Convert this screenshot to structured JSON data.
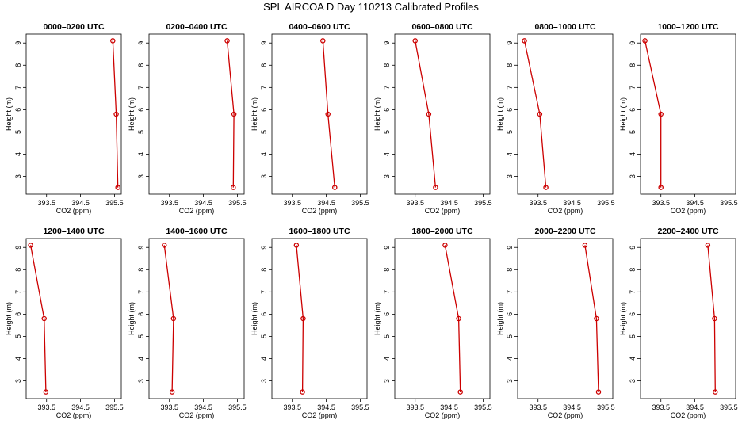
{
  "figure": {
    "title": "SPL AIRCOA D  Day 110213  Calibrated Profiles"
  },
  "colors": {
    "profile": "#cc0000",
    "frame": "#000000"
  },
  "chart_data": [
    {
      "type": "line",
      "title": "0000–0200 UTC",
      "xlabel": "CO2 (ppm)",
      "ylabel": "Height (m)",
      "xlim": [
        392.9,
        395.7
      ],
      "ylim": [
        2.2,
        9.4
      ],
      "xticks": [
        "393.5",
        "394.5",
        "395.5"
      ],
      "yticks": [
        "3",
        "4",
        "5",
        "6",
        "7",
        "8",
        "9"
      ],
      "x": [
        395.6,
        395.55,
        395.45
      ],
      "y": [
        2.5,
        5.8,
        9.1
      ]
    },
    {
      "type": "line",
      "title": "0200–0400 UTC",
      "xlabel": "CO2 (ppm)",
      "ylabel": "Height (m)",
      "xlim": [
        392.9,
        395.7
      ],
      "ylim": [
        2.2,
        9.4
      ],
      "xticks": [
        "393.5",
        "394.5",
        "395.5"
      ],
      "yticks": [
        "3",
        "4",
        "5",
        "6",
        "7",
        "8",
        "9"
      ],
      "x": [
        395.38,
        395.4,
        395.2
      ],
      "y": [
        2.5,
        5.8,
        9.1
      ]
    },
    {
      "type": "line",
      "title": "0400–0600 UTC",
      "xlabel": "CO2 (ppm)",
      "ylabel": "Height (m)",
      "xlim": [
        392.9,
        395.7
      ],
      "ylim": [
        2.2,
        9.4
      ],
      "xticks": [
        "393.5",
        "394.5",
        "395.5"
      ],
      "yticks": [
        "3",
        "4",
        "5",
        "6",
        "7",
        "8",
        "9"
      ],
      "x": [
        394.75,
        394.55,
        394.4
      ],
      "y": [
        2.5,
        5.8,
        9.1
      ]
    },
    {
      "type": "line",
      "title": "0600–0800 UTC",
      "xlabel": "CO2 (ppm)",
      "ylabel": "Height (m)",
      "xlim": [
        392.9,
        395.7
      ],
      "ylim": [
        2.2,
        9.4
      ],
      "xticks": [
        "393.5",
        "394.5",
        "395.5"
      ],
      "yticks": [
        "3",
        "4",
        "5",
        "6",
        "7",
        "8",
        "9"
      ],
      "x": [
        394.1,
        393.9,
        393.5
      ],
      "y": [
        2.5,
        5.8,
        9.1
      ]
    },
    {
      "type": "line",
      "title": "0800–1000 UTC",
      "xlabel": "CO2 (ppm)",
      "ylabel": "Height (m)",
      "xlim": [
        392.9,
        395.7
      ],
      "ylim": [
        2.2,
        9.4
      ],
      "xticks": [
        "393.5",
        "394.5",
        "395.5"
      ],
      "yticks": [
        "3",
        "4",
        "5",
        "6",
        "7",
        "8",
        "9"
      ],
      "x": [
        393.73,
        393.55,
        393.1
      ],
      "y": [
        2.5,
        5.8,
        9.1
      ]
    },
    {
      "type": "line",
      "title": "1000–1200 UTC",
      "xlabel": "CO2 (ppm)",
      "ylabel": "Height (m)",
      "xlim": [
        392.9,
        395.7
      ],
      "ylim": [
        2.2,
        9.4
      ],
      "xticks": [
        "393.5",
        "394.5",
        "395.5"
      ],
      "yticks": [
        "3",
        "4",
        "5",
        "6",
        "7",
        "8",
        "9"
      ],
      "x": [
        393.5,
        393.5,
        393.03
      ],
      "y": [
        2.5,
        5.8,
        9.1
      ]
    },
    {
      "type": "line",
      "title": "1200–1400 UTC",
      "xlabel": "CO2 (ppm)",
      "ylabel": "Height (m)",
      "xlim": [
        392.9,
        395.7
      ],
      "ylim": [
        2.2,
        9.4
      ],
      "xticks": [
        "393.5",
        "394.5",
        "395.5"
      ],
      "yticks": [
        "3",
        "4",
        "5",
        "6",
        "7",
        "8",
        "9"
      ],
      "x": [
        393.48,
        393.43,
        393.03
      ],
      "y": [
        2.5,
        5.8,
        9.1
      ]
    },
    {
      "type": "line",
      "title": "1400–1600 UTC",
      "xlabel": "CO2 (ppm)",
      "ylabel": "Height (m)",
      "xlim": [
        392.9,
        395.7
      ],
      "ylim": [
        2.2,
        9.4
      ],
      "xticks": [
        "393.5",
        "394.5",
        "395.5"
      ],
      "yticks": [
        "3",
        "4",
        "5",
        "6",
        "7",
        "8",
        "9"
      ],
      "x": [
        393.58,
        393.62,
        393.35
      ],
      "y": [
        2.5,
        5.8,
        9.1
      ]
    },
    {
      "type": "line",
      "title": "1600–1800 UTC",
      "xlabel": "CO2 (ppm)",
      "ylabel": "Height (m)",
      "xlim": [
        392.9,
        395.7
      ],
      "ylim": [
        2.2,
        9.4
      ],
      "xticks": [
        "393.5",
        "394.5",
        "395.5"
      ],
      "yticks": [
        "3",
        "4",
        "5",
        "6",
        "7",
        "8",
        "9"
      ],
      "x": [
        393.8,
        393.82,
        393.62
      ],
      "y": [
        2.5,
        5.8,
        9.1
      ]
    },
    {
      "type": "line",
      "title": "1800–2000 UTC",
      "xlabel": "CO2 (ppm)",
      "ylabel": "Height (m)",
      "xlim": [
        392.9,
        395.7
      ],
      "ylim": [
        2.2,
        9.4
      ],
      "xticks": [
        "393.5",
        "394.5",
        "395.5"
      ],
      "yticks": [
        "3",
        "4",
        "5",
        "6",
        "7",
        "8",
        "9"
      ],
      "x": [
        394.83,
        394.78,
        394.38
      ],
      "y": [
        2.5,
        5.8,
        9.1
      ]
    },
    {
      "type": "line",
      "title": "2000–2200 UTC",
      "xlabel": "CO2 (ppm)",
      "ylabel": "Height (m)",
      "xlim": [
        392.9,
        395.7
      ],
      "ylim": [
        2.2,
        9.4
      ],
      "xticks": [
        "393.5",
        "394.5",
        "395.5"
      ],
      "yticks": [
        "3",
        "4",
        "5",
        "6",
        "7",
        "8",
        "9"
      ],
      "x": [
        395.28,
        395.22,
        394.88
      ],
      "y": [
        2.5,
        5.8,
        9.1
      ]
    },
    {
      "type": "line",
      "title": "2200–2400 UTC",
      "xlabel": "CO2 (ppm)",
      "ylabel": "Height (m)",
      "xlim": [
        392.9,
        395.7
      ],
      "ylim": [
        2.2,
        9.4
      ],
      "xticks": [
        "393.5",
        "394.5",
        "395.5"
      ],
      "yticks": [
        "3",
        "4",
        "5",
        "6",
        "7",
        "8",
        "9"
      ],
      "x": [
        395.1,
        395.08,
        394.88
      ],
      "y": [
        2.5,
        5.8,
        9.1
      ]
    }
  ]
}
